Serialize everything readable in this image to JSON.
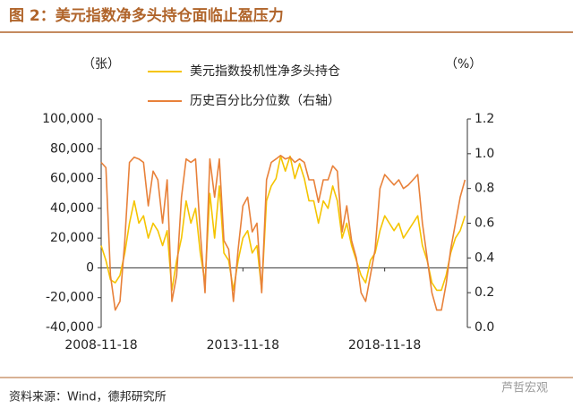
{
  "chart_data": {
    "type": "line",
    "title": "图 2：美元指数净多头持仓面临止盈压力",
    "y_unit": "（张）",
    "y2_unit": "（%）",
    "source": "资料来源：Wind，德邦研究所",
    "watermark": "芦哲宏观",
    "x": [
      "2008-11-18",
      "2009-01-18",
      "2009-03-18",
      "2009-05-18",
      "2009-07-18",
      "2009-09-18",
      "2009-11-18",
      "2010-01-18",
      "2010-03-18",
      "2010-05-18",
      "2010-07-18",
      "2010-09-18",
      "2010-11-18",
      "2011-01-18",
      "2011-03-18",
      "2011-05-18",
      "2011-07-18",
      "2011-09-18",
      "2011-11-18",
      "2012-01-18",
      "2012-03-18",
      "2012-05-18",
      "2012-07-18",
      "2012-09-18",
      "2012-11-18",
      "2013-01-18",
      "2013-03-18",
      "2013-05-18",
      "2013-07-18",
      "2013-09-18",
      "2013-11-18",
      "2014-01-18",
      "2014-03-18",
      "2014-05-18",
      "2014-07-18",
      "2014-09-18",
      "2014-11-18",
      "2015-01-18",
      "2015-03-18",
      "2015-05-18",
      "2015-07-18",
      "2015-09-18",
      "2015-11-18",
      "2016-01-18",
      "2016-03-18",
      "2016-05-18",
      "2016-07-18",
      "2016-09-18",
      "2016-11-18",
      "2017-01-18",
      "2017-03-18",
      "2017-05-18",
      "2017-07-18",
      "2017-09-18",
      "2017-11-18",
      "2018-01-18",
      "2018-03-18",
      "2018-05-18",
      "2018-07-18",
      "2018-09-18",
      "2018-11-18",
      "2019-01-18",
      "2019-03-18",
      "2019-05-18",
      "2019-07-18",
      "2019-09-18",
      "2019-11-18",
      "2020-01-18",
      "2020-03-18",
      "2020-05-18",
      "2020-07-18",
      "2020-09-18",
      "2020-11-18",
      "2021-01-18",
      "2021-03-18",
      "2021-05-18",
      "2021-07-18",
      "2021-09-18"
    ],
    "xlim": [
      "2008-11-18",
      "2021-10-18"
    ],
    "xticks": [
      "2008-11-18",
      "2013-11-18",
      "2018-11-18"
    ],
    "ylim": [
      -40000,
      100000
    ],
    "yticks": [
      {
        "value": -40000,
        "label": "-40,000"
      },
      {
        "value": -20000,
        "label": "-20,000"
      },
      0,
      {
        "value": 20000,
        "label": "20,000"
      },
      {
        "value": 40000,
        "label": "40,000"
      },
      {
        "value": 60000,
        "label": "60,000"
      },
      {
        "value": 80000,
        "label": "80,000"
      },
      {
        "value": 100000,
        "label": "100,000"
      }
    ],
    "y2lim": [
      0,
      1.2
    ],
    "y2ticks": [
      {
        "value": 0,
        "label": "0.0"
      },
      0.2,
      0.4,
      0.6,
      0.8,
      {
        "value": 1,
        "label": "1.0"
      },
      1.2
    ],
    "series": [
      {
        "name": "美元指数投机性净多头持仓",
        "color": "#f5c400",
        "values": [
          15000,
          5000,
          -8000,
          -10000,
          -5000,
          10000,
          30000,
          45000,
          30000,
          35000,
          20000,
          30000,
          25000,
          15000,
          25000,
          -15000,
          5000,
          20000,
          45000,
          30000,
          40000,
          10000,
          -10000,
          50000,
          20000,
          55000,
          10000,
          5000,
          -15000,
          5000,
          20000,
          25000,
          10000,
          15000,
          -15000,
          45000,
          55000,
          60000,
          75000,
          65000,
          75000,
          60000,
          70000,
          60000,
          45000,
          45000,
          30000,
          45000,
          40000,
          55000,
          45000,
          20000,
          30000,
          15000,
          5000,
          -5000,
          -10000,
          5000,
          10000,
          25000,
          35000,
          30000,
          25000,
          30000,
          20000,
          25000,
          30000,
          35000,
          15000,
          5000,
          -10000,
          -15000,
          -15000,
          -5000,
          10000,
          20000,
          25000,
          35000
        ]
      },
      {
        "name": "历史百分比分位数（右轴）",
        "color": "#e8813a",
        "axis": "y2",
        "values": [
          0.95,
          0.92,
          0.3,
          0.1,
          0.15,
          0.5,
          0.95,
          0.98,
          0.97,
          0.95,
          0.7,
          0.9,
          0.85,
          0.6,
          0.85,
          0.15,
          0.3,
          0.75,
          0.97,
          0.95,
          0.97,
          0.55,
          0.2,
          0.97,
          0.75,
          0.97,
          0.5,
          0.45,
          0.15,
          0.45,
          0.7,
          0.75,
          0.55,
          0.6,
          0.2,
          0.85,
          0.95,
          0.97,
          0.99,
          0.97,
          0.98,
          0.95,
          0.97,
          0.95,
          0.85,
          0.85,
          0.72,
          0.85,
          0.85,
          0.93,
          0.9,
          0.55,
          0.7,
          0.5,
          0.4,
          0.2,
          0.15,
          0.3,
          0.45,
          0.8,
          0.88,
          0.85,
          0.82,
          0.85,
          0.8,
          0.82,
          0.85,
          0.88,
          0.6,
          0.4,
          0.2,
          0.1,
          0.1,
          0.25,
          0.45,
          0.6,
          0.75,
          0.85
        ]
      }
    ]
  }
}
